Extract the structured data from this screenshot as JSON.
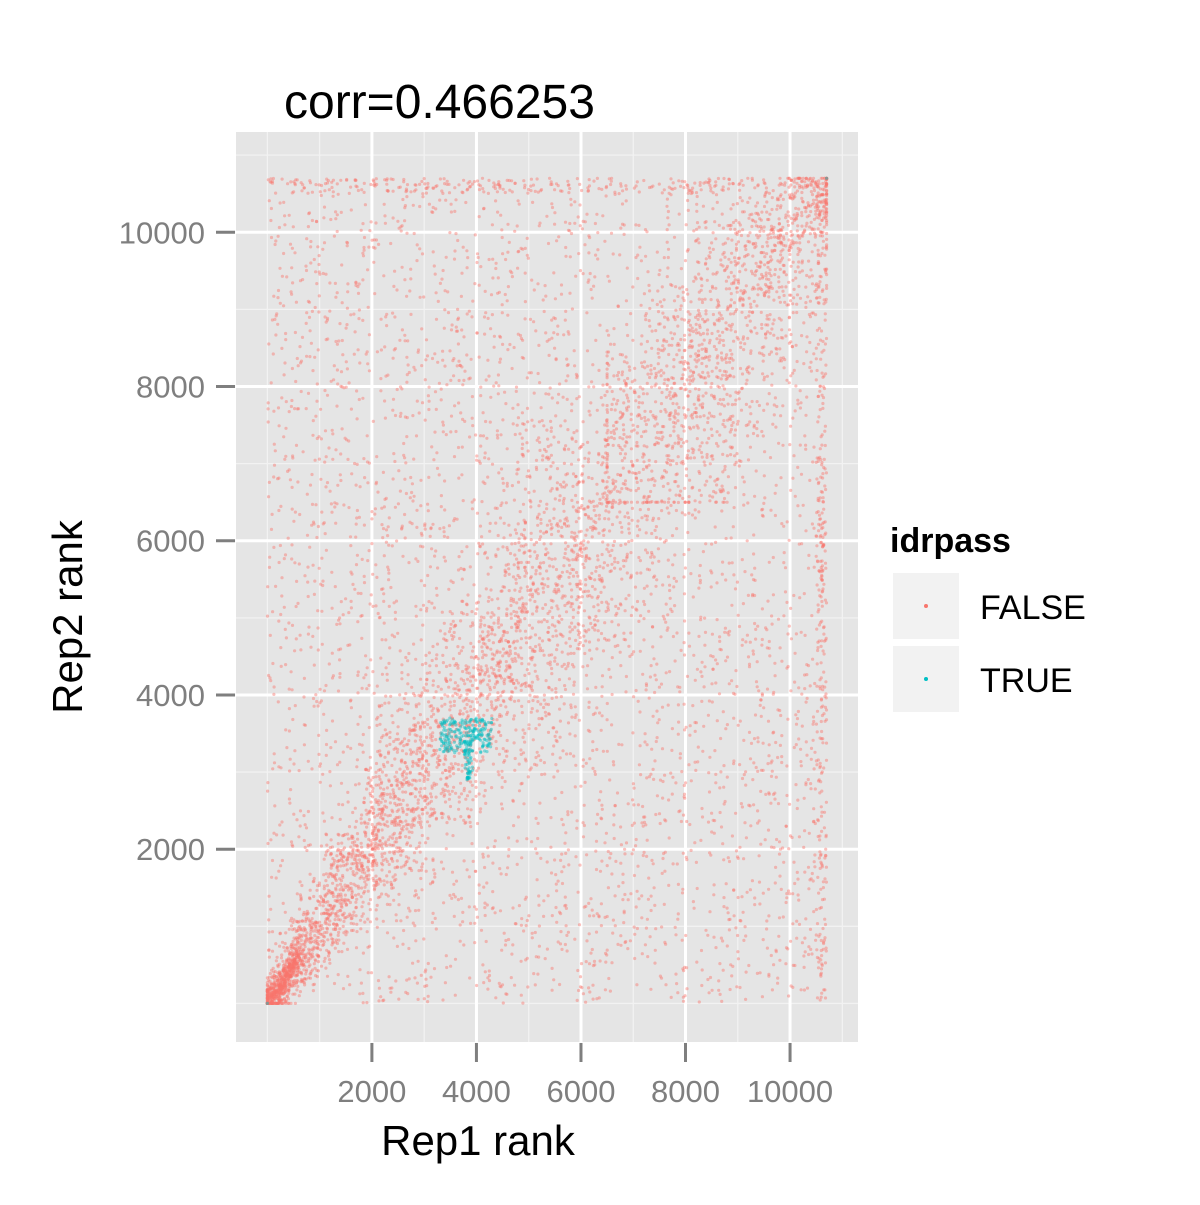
{
  "chart_data": {
    "type": "scatter",
    "title": "corr=0.466253",
    "xlabel": "Rep1 rank",
    "ylabel": "Rep2 rank",
    "xlim": [
      -600,
      11300
    ],
    "ylim": [
      -500,
      11300
    ],
    "xticks": [
      2000,
      4000,
      6000,
      8000,
      10000
    ],
    "xtick_labels": [
      "2000",
      "4000",
      "6000",
      "8000",
      "10000"
    ],
    "yticks": [
      2000,
      4000,
      6000,
      8000,
      10000
    ],
    "ytick_labels": [
      "2000",
      "4000",
      "6000",
      "8000",
      "10000"
    ],
    "grid": true,
    "legend": {
      "title": "idrpass",
      "position": "right",
      "entries": [
        {
          "label": "FALSE",
          "color": "#F8766D"
        },
        {
          "label": "TRUE",
          "color": "#00BFC4"
        }
      ]
    },
    "series": [
      {
        "name": "FALSE",
        "color": "#F8766D",
        "approx_count": 10700,
        "x_range": [
          1,
          10700
        ],
        "y_range": [
          1,
          10700
        ],
        "pattern": "uniform background scatter with dense band along y = x (ranks 1-7000) and a dense cluster near the top-right corner"
      },
      {
        "name": "TRUE",
        "color": "#00BFC4",
        "approx_count": 300,
        "x_range": [
          3200,
          4300
        ],
        "y_range": [
          2900,
          3700
        ],
        "pattern": "compact cluster around x 3300-4300, y 3200-3700 with a thin vertical tail near x 3900 down to y 2900"
      }
    ]
  }
}
